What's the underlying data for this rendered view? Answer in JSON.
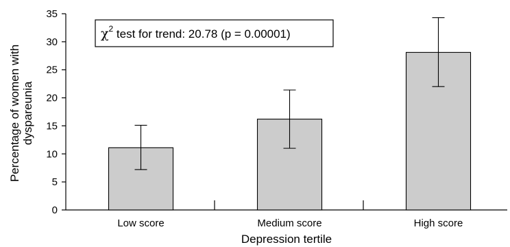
{
  "chart_data": {
    "type": "bar",
    "categories": [
      "Low score",
      "Medium score",
      "High score"
    ],
    "values": [
      11.1,
      16.2,
      28.1
    ],
    "error_bars": [
      {
        "low": 7.2,
        "high": 15.1
      },
      {
        "low": 11.0,
        "high": 21.4
      },
      {
        "low": 22.0,
        "high": 34.3
      }
    ],
    "ylim": [
      0,
      35
    ],
    "yticks": [
      0,
      5,
      10,
      15,
      20,
      25,
      30,
      35
    ],
    "xlabel": "Depression tertile",
    "ylabel_lines": [
      "Percentage of women with",
      "dyspareunia"
    ],
    "annotation": {
      "chi_symbol": "χ",
      "chi_superscript": "2",
      "text": " test for trend: 20.78 (p = 0.00001)"
    },
    "bar_color": "#cccccc",
    "grid": false,
    "legend": "none"
  }
}
